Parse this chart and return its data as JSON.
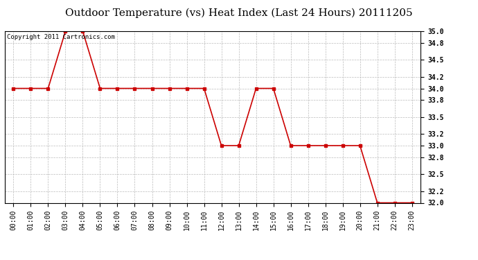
{
  "title": "Outdoor Temperature (vs) Heat Index (Last 24 Hours) 20111205",
  "copyright_text": "Copyright 2011 Cartronics.com",
  "x_labels": [
    "00:00",
    "01:00",
    "02:00",
    "03:00",
    "04:00",
    "05:00",
    "06:00",
    "07:00",
    "08:00",
    "09:00",
    "10:00",
    "11:00",
    "12:00",
    "13:00",
    "14:00",
    "15:00",
    "16:00",
    "17:00",
    "18:00",
    "19:00",
    "20:00",
    "21:00",
    "22:00",
    "23:00"
  ],
  "x_values": [
    0,
    1,
    2,
    3,
    4,
    5,
    6,
    7,
    8,
    9,
    10,
    11,
    12,
    13,
    14,
    15,
    16,
    17,
    18,
    19,
    20,
    21,
    22,
    23
  ],
  "y_values": [
    34.0,
    34.0,
    34.0,
    35.0,
    35.0,
    34.0,
    34.0,
    34.0,
    34.0,
    34.0,
    34.0,
    34.0,
    33.0,
    33.0,
    34.0,
    34.0,
    33.0,
    33.0,
    33.0,
    33.0,
    33.0,
    32.0,
    32.0,
    32.0
  ],
  "line_color": "#cc0000",
  "marker": "s",
  "marker_size": 2.5,
  "line_width": 1.2,
  "ylim_min": 32.0,
  "ylim_max": 35.0,
  "ytick_values": [
    35.0,
    34.8,
    34.5,
    34.2,
    34.0,
    33.8,
    33.5,
    33.2,
    33.0,
    32.8,
    32.5,
    32.2,
    32.0
  ],
  "background_color": "#ffffff",
  "plot_bg_color": "#ffffff",
  "grid_color": "#bbbbbb",
  "title_fontsize": 11,
  "copyright_fontsize": 6.5,
  "tick_fontsize": 7
}
